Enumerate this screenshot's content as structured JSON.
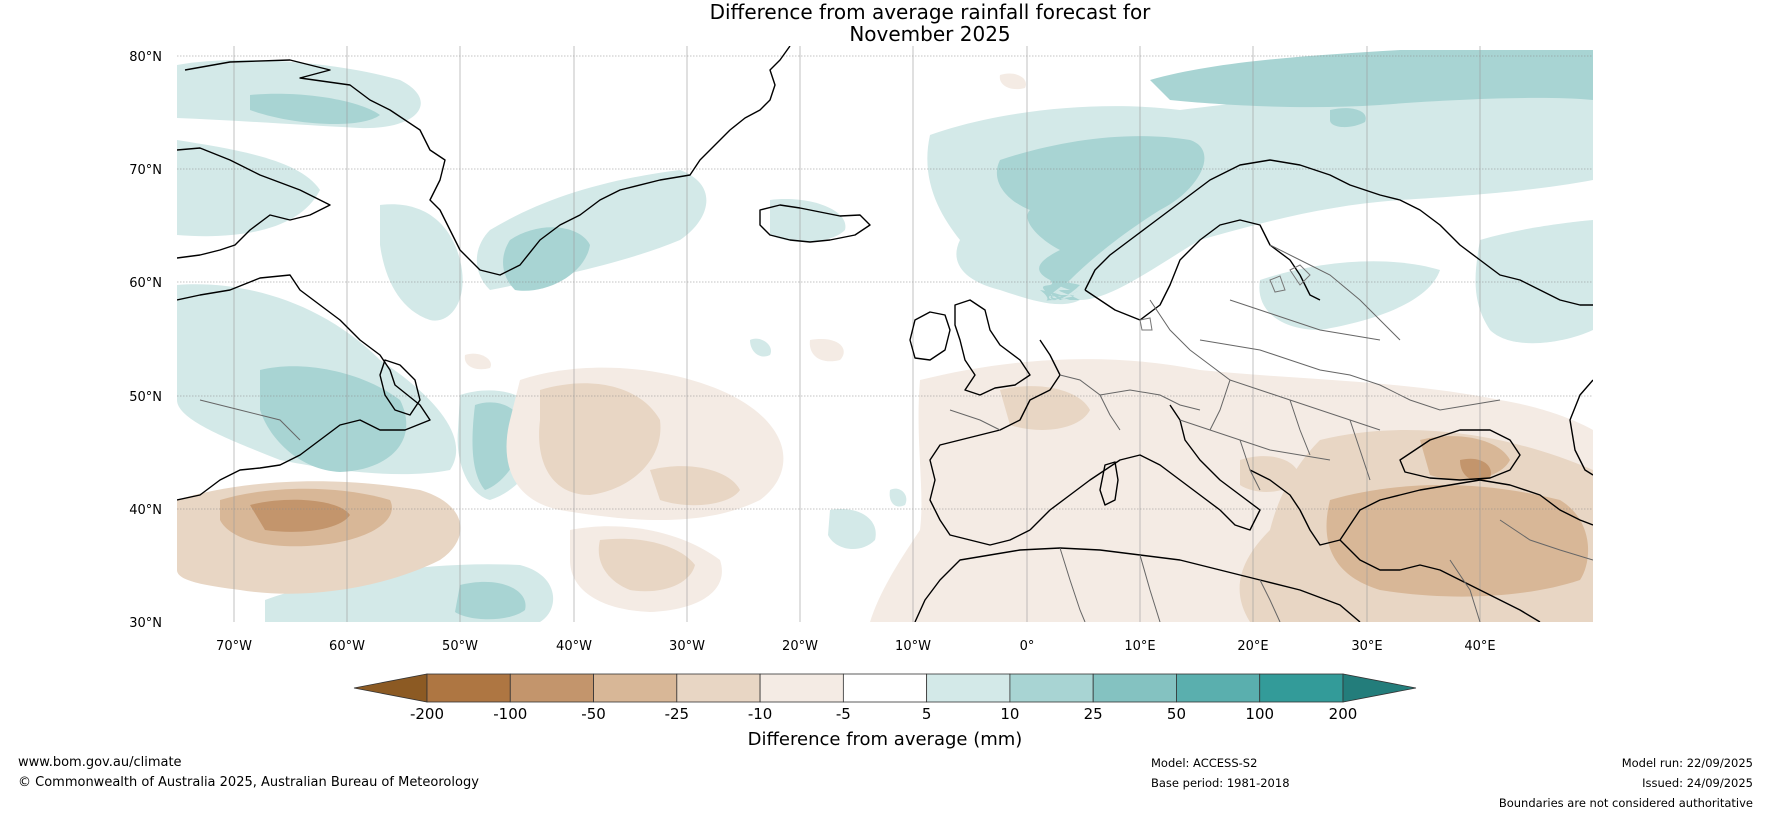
{
  "title": {
    "line1": "Difference from average rainfall forecast for",
    "line2": "November 2025"
  },
  "map": {
    "lat_labels": [
      "80°N",
      "70°N",
      "60°N",
      "50°N",
      "40°N",
      "30°N"
    ],
    "lat_values": [
      80,
      70,
      60,
      50,
      40,
      30
    ],
    "lon_labels": [
      "70°W",
      "60°W",
      "50°W",
      "40°W",
      "30°W",
      "20°W",
      "10°W",
      "0°",
      "10°E",
      "20°E",
      "30°E",
      "40°E"
    ],
    "lon_values": [
      -70,
      -60,
      -50,
      -40,
      -30,
      -20,
      -10,
      0,
      10,
      20,
      30,
      40
    ],
    "extent": {
      "lon_min": -75,
      "lon_max": 50,
      "lat_min": 30,
      "lat_max": 81
    }
  },
  "colorbar": {
    "title": "Difference from average (mm)",
    "labels": [
      "-200",
      "-100",
      "-50",
      "-25",
      "-10",
      "-5",
      "5",
      "10",
      "25",
      "50",
      "100",
      "200"
    ],
    "colors": [
      "#8c5a23",
      "#ae7642",
      "#c3956c",
      "#d8b797",
      "#e8d6c4",
      "#f4ebe4",
      "#ffffff",
      "#d3e9e8",
      "#a8d4d3",
      "#84c2c1",
      "#5aafae",
      "#339b99",
      "#237d7b"
    ]
  },
  "footer": {
    "site": "www.bom.gov.au/climate",
    "copyright": "© Commonwealth of Australia 2025, Australian Bureau of Meteorology",
    "model": "Model: ACCESS-S2",
    "base_period": "Base period: 1981-2018",
    "model_run": "Model run: 22/09/2025",
    "issued": "Issued: 24/09/2025",
    "disclaimer": "Boundaries are not considered authoritative"
  }
}
